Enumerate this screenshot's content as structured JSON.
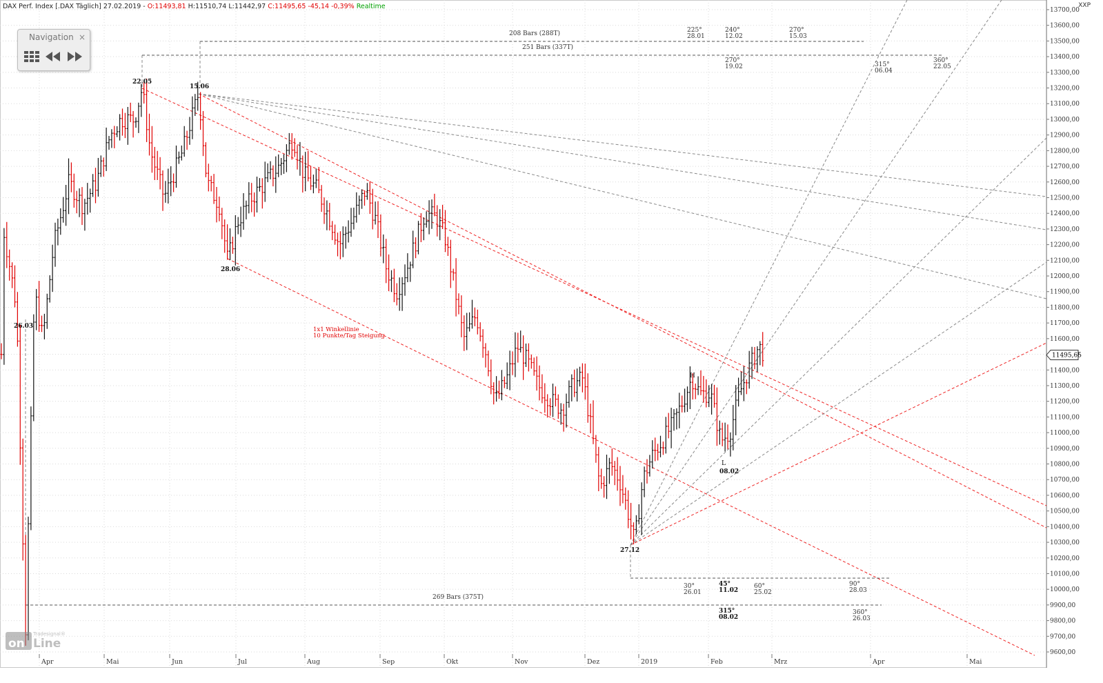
{
  "header": {
    "instrument": "DAX Perf. Index [.DAX Täglich] 27.02.2019 -",
    "open": "O:11493,81",
    "high": "H:11510,74",
    "low": "L:11442,97",
    "close": "C:11495,65",
    "change": "-45,14",
    "change_pct": "-0,39%",
    "realtime": "Realtime"
  },
  "navigation": {
    "title": "Navigation",
    "close": "×"
  },
  "logo": {
    "text_top": "Tradesignal®",
    "text_main": "onLine"
  },
  "axis_code": "XXP",
  "chart_data": {
    "type": "candlestick",
    "y_ticks": [
      "13700,00",
      "13600,00",
      "13500,00",
      "13400,00",
      "13300,00",
      "13200,00",
      "13100,00",
      "13000,00",
      "12900,00",
      "12800,00",
      "12700,00",
      "12600,00",
      "12500,00",
      "12400,00",
      "12300,00",
      "12200,00",
      "12100,00",
      "12000,00",
      "11900,00",
      "11800,00",
      "11700,00",
      "11600,00",
      "11500,00",
      "11400,00",
      "11300,00",
      "11200,00",
      "11100,00",
      "11000,00",
      "10900,00",
      "10800,00",
      "10700,00",
      "10600,00",
      "10500,00",
      "10400,00",
      "10300,00",
      "10200,00",
      "10100,00",
      "10000,00",
      "9900,00",
      "9800,00",
      "9700,00",
      "9600,00"
    ],
    "ylim": [
      9600,
      13700
    ],
    "x_months": [
      "Apr",
      "Mai",
      "Jun",
      "Jul",
      "Aug",
      "Sep",
      "Okt",
      "Nov",
      "Dez",
      "2019",
      "Feb",
      "Mrz",
      "Apr",
      "Mai"
    ],
    "last_price": "11495,65",
    "grid": true,
    "pivots": [
      {
        "label": "26.03",
        "value": 9730
      },
      {
        "label": "22.05",
        "value": 13200
      },
      {
        "label": "15.06",
        "value": 13170
      },
      {
        "label": "28.06",
        "value": 12100
      },
      {
        "label": "27.12",
        "value": 10280
      },
      {
        "label": "08.02",
        "value": 10860
      }
    ],
    "hl_labels": [
      "H",
      "L"
    ],
    "annotation": [
      "1x1 Winkellinie",
      "10 Punkte/Tag Steigung"
    ],
    "range_labels": [
      "208 Bars (288T)",
      "251 Bars (337T)",
      "269 Bars (375T)"
    ],
    "cycle_labels": [
      [
        "225°",
        "28.01"
      ],
      [
        "240°",
        "12.02"
      ],
      [
        "270°",
        "15.03"
      ],
      [
        "270°",
        "19.02"
      ],
      [
        "315°",
        "06.04"
      ],
      [
        "360°",
        "22.05"
      ],
      [
        "30°",
        "26.01"
      ],
      [
        "45°",
        "11.02"
      ],
      [
        "60°",
        "25.02"
      ],
      [
        "90°",
        "28.03"
      ],
      [
        "315°",
        "08.02"
      ],
      [
        "360°",
        "26.03"
      ]
    ]
  }
}
